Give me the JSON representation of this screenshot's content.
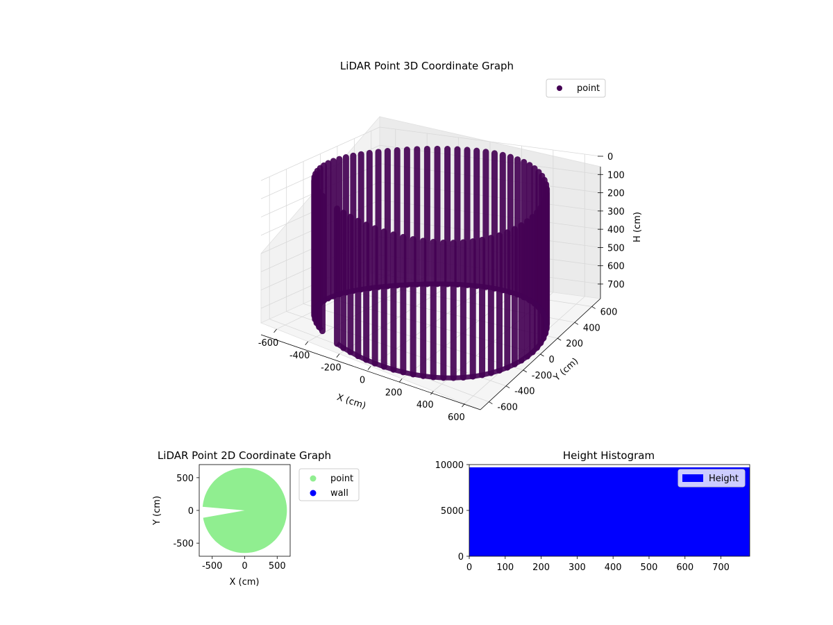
{
  "chart_data": [
    {
      "type": "scatter3d",
      "title": "LiDAR Point 3D Coordinate Graph",
      "xlabel": "X (cm)",
      "ylabel": "Y (cm)",
      "zlabel": "H (cm)",
      "xlim": [
        -700,
        700
      ],
      "ylim": [
        -700,
        700
      ],
      "zlim": [
        0,
        780
      ],
      "z_inverted": true,
      "xticks": [
        -600,
        -400,
        -200,
        0,
        200,
        400,
        600
      ],
      "yticks": [
        -600,
        -400,
        -200,
        0,
        200,
        400,
        600
      ],
      "zticks": [
        0,
        100,
        200,
        300,
        400,
        500,
        600,
        700
      ],
      "grid": true,
      "legend": {
        "position": "upper-right",
        "entries": [
          "point"
        ]
      },
      "series": [
        {
          "name": "point",
          "color": "#440154",
          "description_of_shape": "cylindrical room scan: points at radius ~650 cm sampled every 5 deg, spanning heights 0-780 cm",
          "radius": 650,
          "angle_step_deg": 5,
          "angle_range_deg": [
            -115,
            230
          ],
          "height_range": [
            0,
            780
          ]
        }
      ]
    },
    {
      "type": "scatter",
      "title": "LiDAR Point 2D Coordinate Graph",
      "xlabel": "X (cm)",
      "ylabel": "Y (cm)",
      "xlim": [
        -700,
        700
      ],
      "ylim": [
        -700,
        700
      ],
      "xticks": [
        -500,
        0,
        500
      ],
      "yticks": [
        -500,
        0,
        500
      ],
      "legend": {
        "position": "outside-right",
        "entries": [
          "point",
          "wall"
        ]
      },
      "series": [
        {
          "name": "point",
          "color": "#90ee90",
          "radius": 650,
          "angle_range_deg": [
            -170,
            175
          ]
        },
        {
          "name": "wall",
          "color": "#0000ff",
          "values": []
        }
      ]
    },
    {
      "type": "bar",
      "title": "Height Histogram",
      "xlim": [
        0,
        780
      ],
      "ylim": [
        0,
        10000
      ],
      "xticks": [
        0,
        100,
        200,
        300,
        400,
        500,
        600,
        700
      ],
      "yticks": [
        0,
        5000,
        10000
      ],
      "legend": {
        "position": "upper-right",
        "entries": [
          "Height"
        ]
      },
      "series": [
        {
          "name": "Height",
          "color": "#0000ff",
          "bin_range": [
            0,
            780
          ],
          "count": 9700
        }
      ]
    }
  ]
}
